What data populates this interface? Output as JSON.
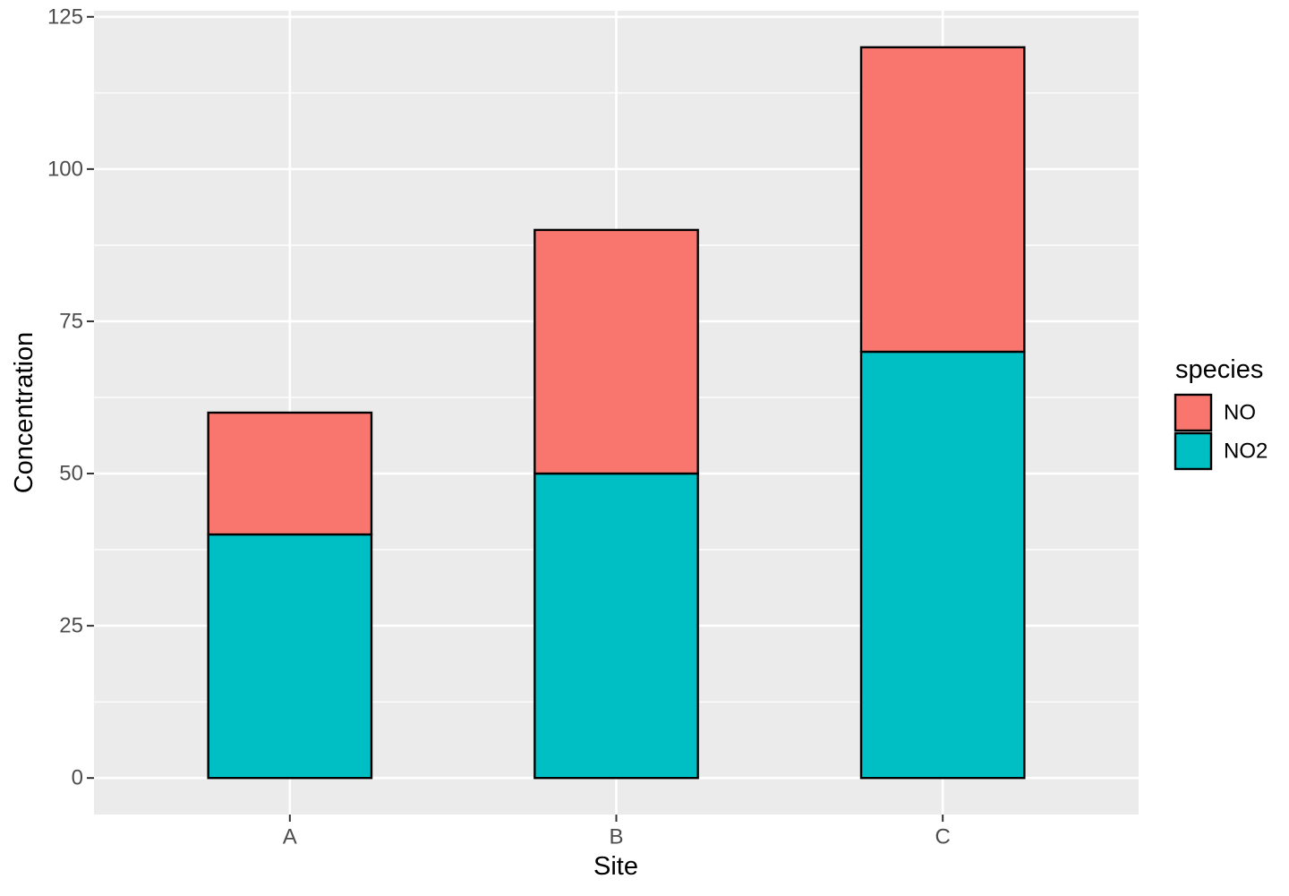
{
  "figure": {
    "background": "#FFFFFF",
    "panel_background": "#EBEBEB",
    "grid_color": "#FFFFFF",
    "bar_border_color": "#000000",
    "tick_color": "#333333",
    "axis_text_color": "#4D4D4D"
  },
  "chart_data": {
    "type": "bar",
    "stacked": true,
    "orientation": "vertical",
    "xlabel": "Site",
    "ylabel": "Concentration",
    "categories": [
      "A",
      "B",
      "C"
    ],
    "series": [
      {
        "name": "NO",
        "color": "#F8766D",
        "values": [
          20,
          40,
          50
        ]
      },
      {
        "name": "NO2",
        "color": "#00BFC4",
        "values": [
          40,
          50,
          70
        ]
      }
    ],
    "stack_order_bottom_to_top": [
      "NO2",
      "NO"
    ],
    "totals": [
      60,
      90,
      120
    ],
    "ylim": [
      0,
      125
    ],
    "y_ticks": [
      0,
      25,
      50,
      75,
      100,
      125
    ],
    "y_tick_labels": [
      "0",
      "25",
      "50",
      "75",
      "100",
      "125"
    ],
    "y_minor_step": 12.5,
    "grid": "major-and-minor",
    "bar_width_fraction": 0.5,
    "legend": {
      "title": "species",
      "position": "right",
      "entries": [
        "NO",
        "NO2"
      ]
    }
  }
}
